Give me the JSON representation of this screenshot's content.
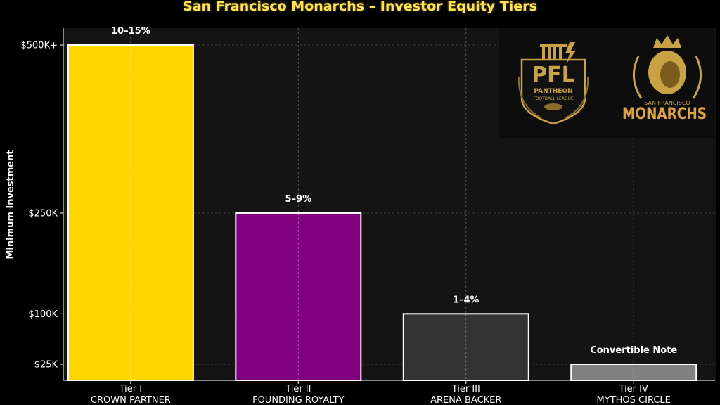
{
  "chart_data": {
    "type": "bar",
    "title": "San Francisco Monarchs – Investor Equity Tiers",
    "ylabel": "Minimum Investment",
    "xlabel": "",
    "y_tick_labels": [
      "$25K",
      "$100K",
      "$250K",
      "$500K+"
    ],
    "y_tick_values": [
      25000,
      100000,
      250000,
      500000
    ],
    "categories": [
      {
        "tier": "Tier I",
        "name": "CROWN PARTNER"
      },
      {
        "tier": "Tier II",
        "name": "FOUNDING ROYALTY"
      },
      {
        "tier": "Tier III",
        "name": "ARENA BACKER"
      },
      {
        "tier": "Tier IV",
        "name": "MYTHOS CIRCLE"
      }
    ],
    "values": [
      500000,
      250000,
      100000,
      25000
    ],
    "bar_labels": [
      "10–15%",
      "5–9%",
      "1–4%",
      "Convertible Note"
    ],
    "colors": [
      "#FFD700",
      "#800080",
      "#333333",
      "#808080"
    ],
    "grid": true,
    "legend": "none"
  },
  "logos": {
    "pfl": {
      "initials": "PFL",
      "line1": "PANTHEON",
      "line2": "FOOTBALL LEAGUE",
      "icon": "pillar-shield-icon"
    },
    "monarchs": {
      "line1": "SAN FRANCISCO",
      "line2": "MONARCHS",
      "icon": "lion-crown-icon"
    }
  },
  "theme": {
    "background": "#000000",
    "plot_background": "#141414",
    "title_color": "#FFE34D",
    "gold": "#C9A243",
    "bar_edge": "#ffffff"
  }
}
